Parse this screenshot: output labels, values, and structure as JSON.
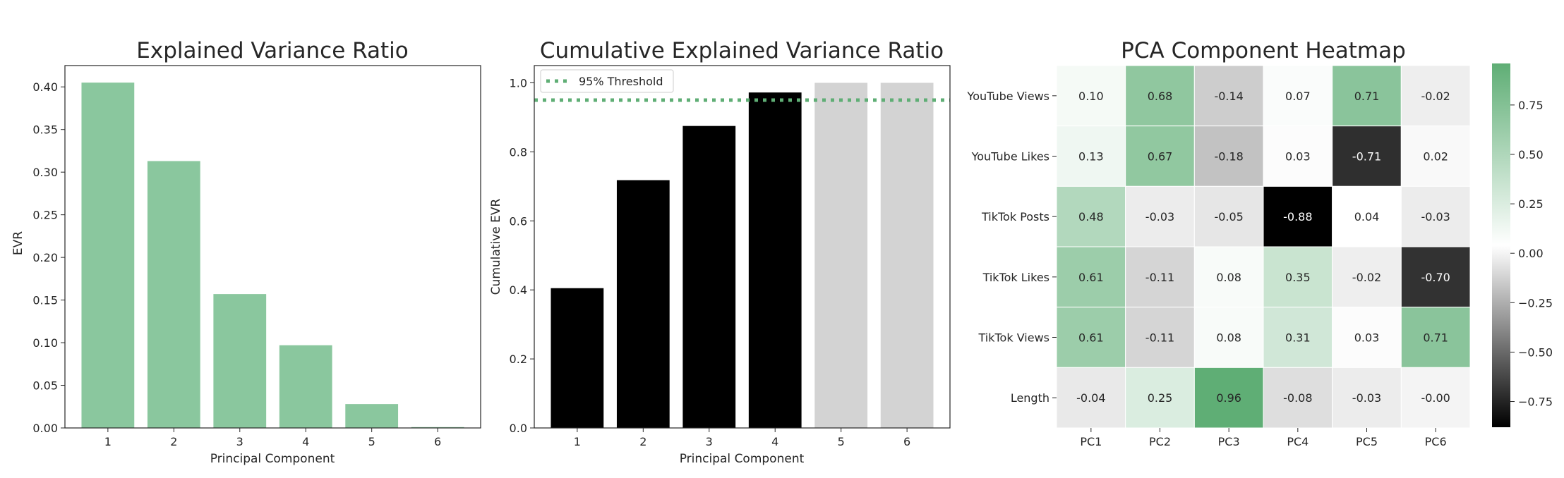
{
  "chart_data": [
    {
      "type": "bar",
      "title": "Explained Variance Ratio",
      "xlabel": "Principal Component",
      "ylabel": "EVR",
      "categories": [
        "1",
        "2",
        "3",
        "4",
        "5",
        "6"
      ],
      "values": [
        0.405,
        0.313,
        0.157,
        0.097,
        0.028,
        0.001
      ],
      "ylim": [
        0,
        0.425
      ],
      "yticks": [
        "0.00",
        "0.05",
        "0.10",
        "0.15",
        "0.20",
        "0.25",
        "0.30",
        "0.35",
        "0.40"
      ],
      "color": "#8ac79e",
      "grid": false
    },
    {
      "type": "bar",
      "title": "Cumulative Explained Variance Ratio",
      "xlabel": "Principal Component",
      "ylabel": "Cumulative EVR",
      "categories": [
        "1",
        "2",
        "3",
        "4",
        "5",
        "6"
      ],
      "values": [
        0.405,
        0.718,
        0.875,
        0.972,
        1.0,
        1.0
      ],
      "bar_colors": [
        "#000000",
        "#000000",
        "#000000",
        "#000000",
        "#d3d3d3",
        "#d3d3d3"
      ],
      "ylim": [
        0,
        1.05
      ],
      "yticks": [
        "0.0",
        "0.2",
        "0.4",
        "0.6",
        "0.8",
        "1.0"
      ],
      "threshold": {
        "value": 0.95,
        "label": "95% Threshold",
        "color": "#5fae75"
      },
      "legend": "top-left",
      "grid": false
    },
    {
      "type": "heatmap",
      "title": "PCA Component Heatmap",
      "rows": [
        "YouTube Views",
        "YouTube Likes",
        "TikTok Posts",
        "TikTok Likes",
        "TikTok Views",
        "Length"
      ],
      "columns": [
        "PC1",
        "PC2",
        "PC3",
        "PC4",
        "PC5",
        "PC6"
      ],
      "values": [
        [
          0.1,
          0.68,
          -0.14,
          0.07,
          0.71,
          -0.02
        ],
        [
          0.13,
          0.67,
          -0.18,
          0.03,
          -0.71,
          0.02
        ],
        [
          0.48,
          -0.03,
          -0.05,
          -0.88,
          0.04,
          -0.03
        ],
        [
          0.61,
          -0.11,
          0.08,
          0.35,
          -0.02,
          -0.7
        ],
        [
          0.61,
          -0.11,
          0.08,
          0.31,
          0.03,
          0.71
        ],
        [
          -0.04,
          0.25,
          0.96,
          -0.08,
          -0.03,
          -0.0
        ]
      ],
      "value_labels": [
        [
          "0.10",
          "0.68",
          "-0.14",
          "0.07",
          "0.71",
          "-0.02"
        ],
        [
          "0.13",
          "0.67",
          "-0.18",
          "0.03",
          "-0.71",
          "0.02"
        ],
        [
          "0.48",
          "-0.03",
          "-0.05",
          "-0.88",
          "0.04",
          "-0.03"
        ],
        [
          "0.61",
          "-0.11",
          "0.08",
          "0.35",
          "-0.02",
          "-0.70"
        ],
        [
          "0.61",
          "-0.11",
          "0.08",
          "0.31",
          "0.03",
          "0.71"
        ],
        [
          "-0.04",
          "0.25",
          "0.96",
          "-0.08",
          "-0.03",
          "-0.00"
        ]
      ],
      "vmin": -0.88,
      "vmax": 0.96,
      "colormap": {
        "low": "#000000",
        "mid": "#ffffff",
        "high": "#5fae75"
      },
      "colorbar_ticks": [
        {
          "value": 0.75,
          "label": "0.75"
        },
        {
          "value": 0.5,
          "label": "0.50"
        },
        {
          "value": 0.25,
          "label": "0.25"
        },
        {
          "value": 0.0,
          "label": "0.00"
        },
        {
          "value": -0.25,
          "label": "−0.25"
        },
        {
          "value": -0.5,
          "label": "−0.50"
        },
        {
          "value": -0.75,
          "label": "−0.75"
        }
      ]
    }
  ]
}
